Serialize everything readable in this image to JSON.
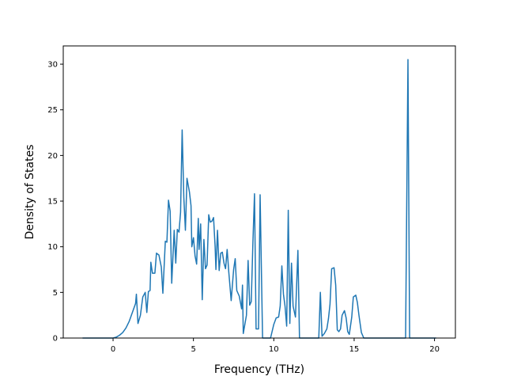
{
  "chart_data": {
    "type": "line",
    "title": "",
    "xlabel": "Frequency (THz)",
    "ylabel": "Density of States",
    "xlim": [
      -3.1,
      21.3
    ],
    "ylim": [
      0,
      32
    ],
    "xticks": [
      0,
      5,
      10,
      15,
      20
    ],
    "yticks": [
      0,
      5,
      10,
      15,
      20,
      25,
      30
    ],
    "grid": false,
    "legend": "none",
    "series": [
      {
        "color": "#1f77b4",
        "points": [
          [
            -1.9,
            0
          ],
          [
            -1.0,
            0
          ],
          [
            0.0,
            0
          ],
          [
            0.2,
            0.1
          ],
          [
            0.4,
            0.3
          ],
          [
            0.6,
            0.6
          ],
          [
            0.8,
            1.1
          ],
          [
            1.0,
            1.8
          ],
          [
            1.2,
            2.8
          ],
          [
            1.4,
            3.8
          ],
          [
            1.45,
            4.8
          ],
          [
            1.55,
            1.6
          ],
          [
            1.7,
            2.5
          ],
          [
            1.85,
            4.5
          ],
          [
            2.0,
            5.0
          ],
          [
            2.1,
            2.8
          ],
          [
            2.2,
            5.1
          ],
          [
            2.3,
            5.2
          ],
          [
            2.35,
            8.3
          ],
          [
            2.45,
            7.1
          ],
          [
            2.6,
            7.1
          ],
          [
            2.7,
            9.3
          ],
          [
            2.85,
            9.1
          ],
          [
            3.0,
            7.8
          ],
          [
            3.1,
            4.9
          ],
          [
            3.25,
            10.6
          ],
          [
            3.35,
            10.5
          ],
          [
            3.45,
            15.1
          ],
          [
            3.55,
            13.9
          ],
          [
            3.65,
            6.0
          ],
          [
            3.8,
            11.8
          ],
          [
            3.9,
            8.2
          ],
          [
            4.0,
            11.9
          ],
          [
            4.1,
            11.6
          ],
          [
            4.2,
            13.8
          ],
          [
            4.3,
            22.8
          ],
          [
            4.4,
            15.4
          ],
          [
            4.5,
            11.8
          ],
          [
            4.6,
            17.5
          ],
          [
            4.75,
            16.0
          ],
          [
            4.85,
            14.5
          ],
          [
            4.9,
            10.0
          ],
          [
            5.0,
            11.0
          ],
          [
            5.1,
            9.0
          ],
          [
            5.2,
            8.1
          ],
          [
            5.3,
            13.1
          ],
          [
            5.35,
            9.7
          ],
          [
            5.45,
            12.5
          ],
          [
            5.55,
            4.2
          ],
          [
            5.65,
            10.8
          ],
          [
            5.75,
            7.6
          ],
          [
            5.85,
            8.0
          ],
          [
            5.95,
            13.5
          ],
          [
            6.05,
            12.7
          ],
          [
            6.15,
            12.8
          ],
          [
            6.25,
            13.2
          ],
          [
            6.35,
            10.0
          ],
          [
            6.4,
            7.5
          ],
          [
            6.5,
            11.8
          ],
          [
            6.6,
            7.4
          ],
          [
            6.7,
            9.3
          ],
          [
            6.8,
            9.4
          ],
          [
            6.9,
            8.2
          ],
          [
            7.0,
            7.6
          ],
          [
            7.1,
            9.7
          ],
          [
            7.2,
            7.2
          ],
          [
            7.35,
            4.1
          ],
          [
            7.5,
            7.5
          ],
          [
            7.6,
            8.7
          ],
          [
            7.7,
            5.2
          ],
          [
            7.85,
            4.6
          ],
          [
            8.0,
            3.2
          ],
          [
            8.05,
            5.8
          ],
          [
            8.1,
            0.5
          ],
          [
            8.3,
            2.5
          ],
          [
            8.4,
            8.5
          ],
          [
            8.5,
            3.6
          ],
          [
            8.6,
            4.0
          ],
          [
            8.7,
            10.5
          ],
          [
            8.8,
            15.8
          ],
          [
            8.9,
            1.0
          ],
          [
            9.05,
            1.0
          ],
          [
            9.15,
            15.7
          ],
          [
            9.3,
            0
          ],
          [
            9.8,
            0
          ],
          [
            10.0,
            1.5
          ],
          [
            10.15,
            2.2
          ],
          [
            10.3,
            2.3
          ],
          [
            10.4,
            3.5
          ],
          [
            10.5,
            7.9
          ],
          [
            10.6,
            4.8
          ],
          [
            10.7,
            3.5
          ],
          [
            10.8,
            1.3
          ],
          [
            10.9,
            14.0
          ],
          [
            11.0,
            1.6
          ],
          [
            11.1,
            8.2
          ],
          [
            11.2,
            3.5
          ],
          [
            11.35,
            2.3
          ],
          [
            11.5,
            9.6
          ],
          [
            11.6,
            0
          ],
          [
            12.8,
            0
          ],
          [
            12.9,
            5.0
          ],
          [
            13.0,
            0.2
          ],
          [
            13.15,
            0.5
          ],
          [
            13.3,
            1.0
          ],
          [
            13.4,
            2.1
          ],
          [
            13.5,
            3.7
          ],
          [
            13.6,
            7.6
          ],
          [
            13.75,
            7.7
          ],
          [
            13.85,
            5.8
          ],
          [
            13.95,
            0.9
          ],
          [
            14.05,
            0.7
          ],
          [
            14.15,
            1.0
          ],
          [
            14.25,
            2.5
          ],
          [
            14.4,
            3.0
          ],
          [
            14.5,
            2.2
          ],
          [
            14.6,
            0.7
          ],
          [
            14.7,
            0.4
          ],
          [
            14.85,
            2.3
          ],
          [
            14.95,
            4.5
          ],
          [
            15.1,
            4.7
          ],
          [
            15.2,
            3.9
          ],
          [
            15.3,
            2.5
          ],
          [
            15.45,
            0.6
          ],
          [
            15.6,
            0
          ],
          [
            18.2,
            0
          ],
          [
            18.35,
            30.5
          ],
          [
            18.45,
            0
          ],
          [
            20.1,
            0
          ]
        ]
      }
    ]
  }
}
